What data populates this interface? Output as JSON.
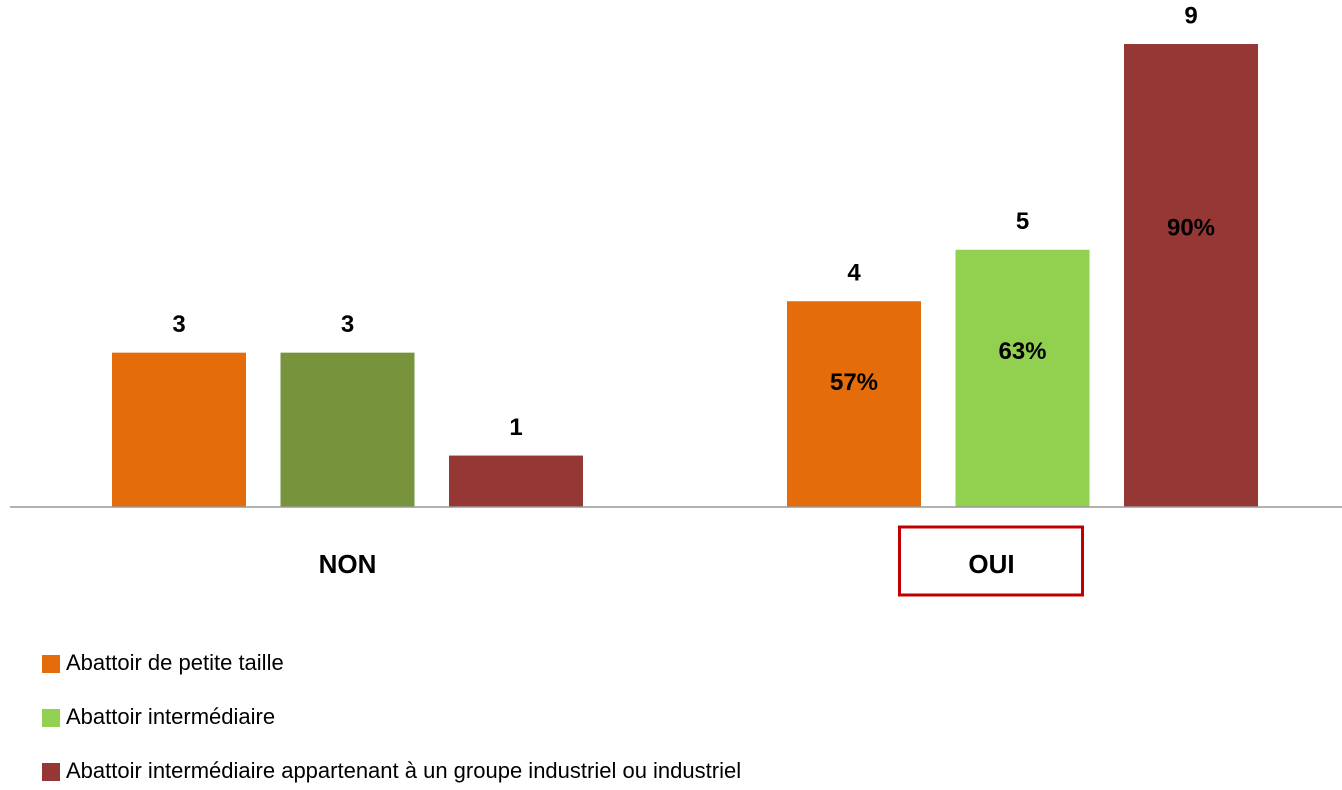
{
  "chart_data": {
    "type": "bar",
    "categories": [
      "NON",
      "OUI"
    ],
    "series": [
      {
        "name": "Abattoir de petite taille",
        "color": "#E46C0A",
        "values": [
          3,
          4
        ],
        "percent_labels": [
          null,
          "57%"
        ]
      },
      {
        "name": "Abattoir intermédiaire",
        "color": "#92D050",
        "point_colors": [
          "#77933C",
          "#92D050"
        ],
        "values": [
          3,
          5
        ],
        "percent_labels": [
          null,
          "63%"
        ]
      },
      {
        "name": "Abattoir intermédiaire appartenant à un groupe industriel ou industriel",
        "color": "#953735",
        "values": [
          1,
          9
        ],
        "percent_labels": [
          null,
          "90%"
        ]
      }
    ],
    "ylim": [
      0,
      9
    ],
    "highlighted_category": "OUI",
    "highlight_color": "#C00000",
    "legend": "bottom-left"
  }
}
